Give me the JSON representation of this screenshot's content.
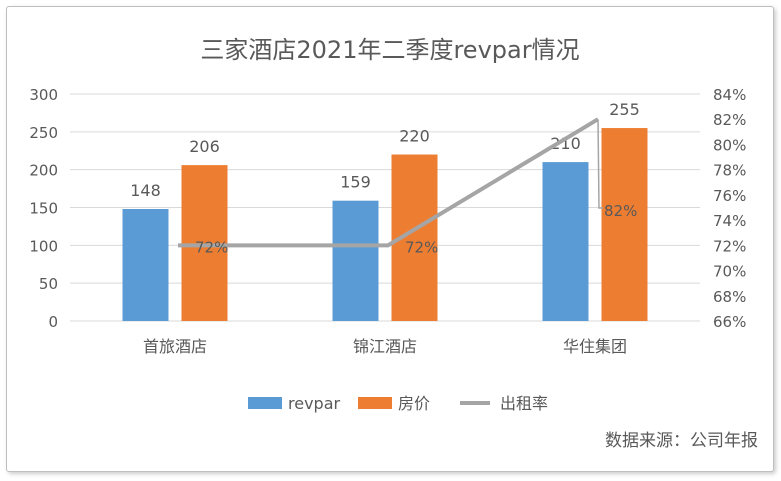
{
  "chart_data": {
    "type": "bar+line",
    "title": "三家酒店2021年二季度revpar情况",
    "categories": [
      "首旅酒店",
      "锦江酒店",
      "华住集团"
    ],
    "series": [
      {
        "name": "revpar",
        "type": "bar",
        "axis": "left",
        "values": [
          148,
          159,
          210
        ],
        "color": "#5b9bd5"
      },
      {
        "name": "房价",
        "type": "bar",
        "axis": "left",
        "values": [
          206,
          220,
          255
        ],
        "color": "#ed7d31"
      },
      {
        "name": "出租率",
        "type": "line",
        "axis": "right",
        "values": [
          72,
          72,
          82
        ],
        "labels": [
          "72%",
          "72%",
          "82%"
        ],
        "color": "#a5a5a5"
      }
    ],
    "ylim": [
      0,
      300
    ],
    "yticks": [
      "0",
      "50",
      "100",
      "150",
      "200",
      "250",
      "300"
    ],
    "y2lim": [
      66,
      84
    ],
    "y2ticks": [
      "66%",
      "68%",
      "70%",
      "72%",
      "74%",
      "76%",
      "78%",
      "80%",
      "82%",
      "84%"
    ],
    "grid": true,
    "legend": "bottom"
  },
  "source": "数据来源：公司年报"
}
